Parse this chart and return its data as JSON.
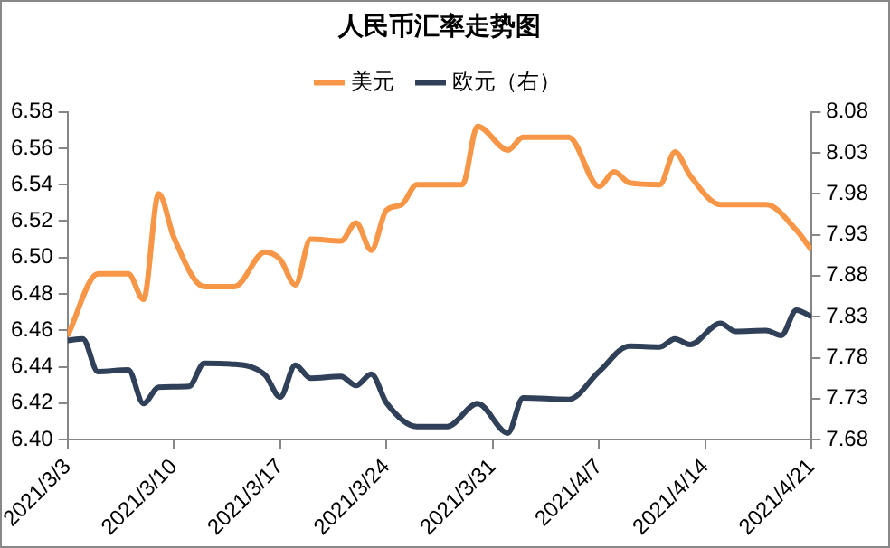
{
  "chart_data": {
    "type": "line",
    "title": "人民币汇率走势图",
    "legend": "top",
    "marker": "none",
    "line_style": "solid",
    "grid": false,
    "xlim": [
      "2021-03-03",
      "2021-04-21"
    ],
    "xticks": [
      {
        "value": "2021-03-03",
        "label": "2021/3/3"
      },
      {
        "value": "2021-03-10",
        "label": "2021/3/10"
      },
      {
        "value": "2021-03-17",
        "label": "2021/3/17"
      },
      {
        "value": "2021-03-24",
        "label": "2021/3/24"
      },
      {
        "value": "2021-03-31",
        "label": "2021/3/31"
      },
      {
        "value": "2021-04-07",
        "label": "2021/4/7"
      },
      {
        "value": "2021-04-14",
        "label": "2021/4/14"
      },
      {
        "value": "2021-04-21",
        "label": "2021/4/21"
      }
    ],
    "ylim": [
      6.4,
      6.58
    ],
    "yticks": [
      {
        "value": 6.4,
        "label": "6.40"
      },
      {
        "value": 6.42,
        "label": "6.42"
      },
      {
        "value": 6.44,
        "label": "6.44"
      },
      {
        "value": 6.46,
        "label": "6.46"
      },
      {
        "value": 6.48,
        "label": "6.48"
      },
      {
        "value": 6.5,
        "label": "6.50"
      },
      {
        "value": 6.52,
        "label": "6.52"
      },
      {
        "value": 6.54,
        "label": "6.54"
      },
      {
        "value": 6.56,
        "label": "6.56"
      },
      {
        "value": 6.58,
        "label": "6.58"
      }
    ],
    "y2lim": [
      7.68,
      8.08
    ],
    "y2ticks": [
      {
        "value": 7.68,
        "label": "7.68"
      },
      {
        "value": 7.73,
        "label": "7.73"
      },
      {
        "value": 7.78,
        "label": "7.78"
      },
      {
        "value": 7.83,
        "label": "7.83"
      },
      {
        "value": 7.88,
        "label": "7.88"
      },
      {
        "value": 7.93,
        "label": "7.93"
      },
      {
        "value": 7.98,
        "label": "7.98"
      },
      {
        "value": 8.03,
        "label": "8.03"
      },
      {
        "value": 8.08,
        "label": "8.08"
      }
    ],
    "series": [
      {
        "name": "美元",
        "color": "#f79646",
        "x": [
          "2021-03-03",
          "2021-03-05",
          "2021-03-07",
          "2021-03-08",
          "2021-03-09",
          "2021-03-10",
          "2021-03-12",
          "2021-03-14",
          "2021-03-16",
          "2021-03-17",
          "2021-03-18",
          "2021-03-19",
          "2021-03-21",
          "2021-03-22",
          "2021-03-23",
          "2021-03-24",
          "2021-03-25",
          "2021-03-26",
          "2021-03-29",
          "2021-03-30",
          "2021-04-01",
          "2021-04-02",
          "2021-04-05",
          "2021-04-07",
          "2021-04-08",
          "2021-04-09",
          "2021-04-11",
          "2021-04-12",
          "2021-04-13",
          "2021-04-15",
          "2021-04-18",
          "2021-04-20",
          "2021-04-21"
        ],
        "values": [
          6.457,
          6.491,
          6.491,
          6.477,
          6.535,
          6.511,
          6.484,
          6.484,
          6.503,
          6.499,
          6.485,
          6.51,
          6.509,
          6.519,
          6.504,
          6.526,
          6.529,
          6.54,
          6.54,
          6.572,
          6.559,
          6.566,
          6.566,
          6.539,
          6.547,
          6.541,
          6.54,
          6.558,
          6.545,
          6.529,
          6.529,
          6.515,
          6.504
        ]
      },
      {
        "name": "欧元（右）",
        "color": "#2f4058",
        "axis": "y2",
        "x": [
          "2021-03-03",
          "2021-03-04",
          "2021-03-05",
          "2021-03-07",
          "2021-03-08",
          "2021-03-09",
          "2021-03-11",
          "2021-03-12",
          "2021-03-14",
          "2021-03-16",
          "2021-03-17",
          "2021-03-18",
          "2021-03-19",
          "2021-03-21",
          "2021-03-22",
          "2021-03-23",
          "2021-03-24",
          "2021-03-26",
          "2021-03-28",
          "2021-03-30",
          "2021-04-01",
          "2021-04-02",
          "2021-04-05",
          "2021-04-07",
          "2021-04-09",
          "2021-04-11",
          "2021-04-12",
          "2021-04-13",
          "2021-04-15",
          "2021-04-16",
          "2021-04-18",
          "2021-04-19",
          "2021-04-20",
          "2021-04-21"
        ],
        "values": [
          7.801,
          7.803,
          7.763,
          7.765,
          7.724,
          7.744,
          7.745,
          7.773,
          7.772,
          7.759,
          7.732,
          7.771,
          7.755,
          7.757,
          7.746,
          7.76,
          7.725,
          7.696,
          7.696,
          7.724,
          7.688,
          7.731,
          7.729,
          7.763,
          7.794,
          7.793,
          7.803,
          7.796,
          7.822,
          7.812,
          7.813,
          7.807,
          7.838,
          7.83
        ]
      }
    ]
  }
}
